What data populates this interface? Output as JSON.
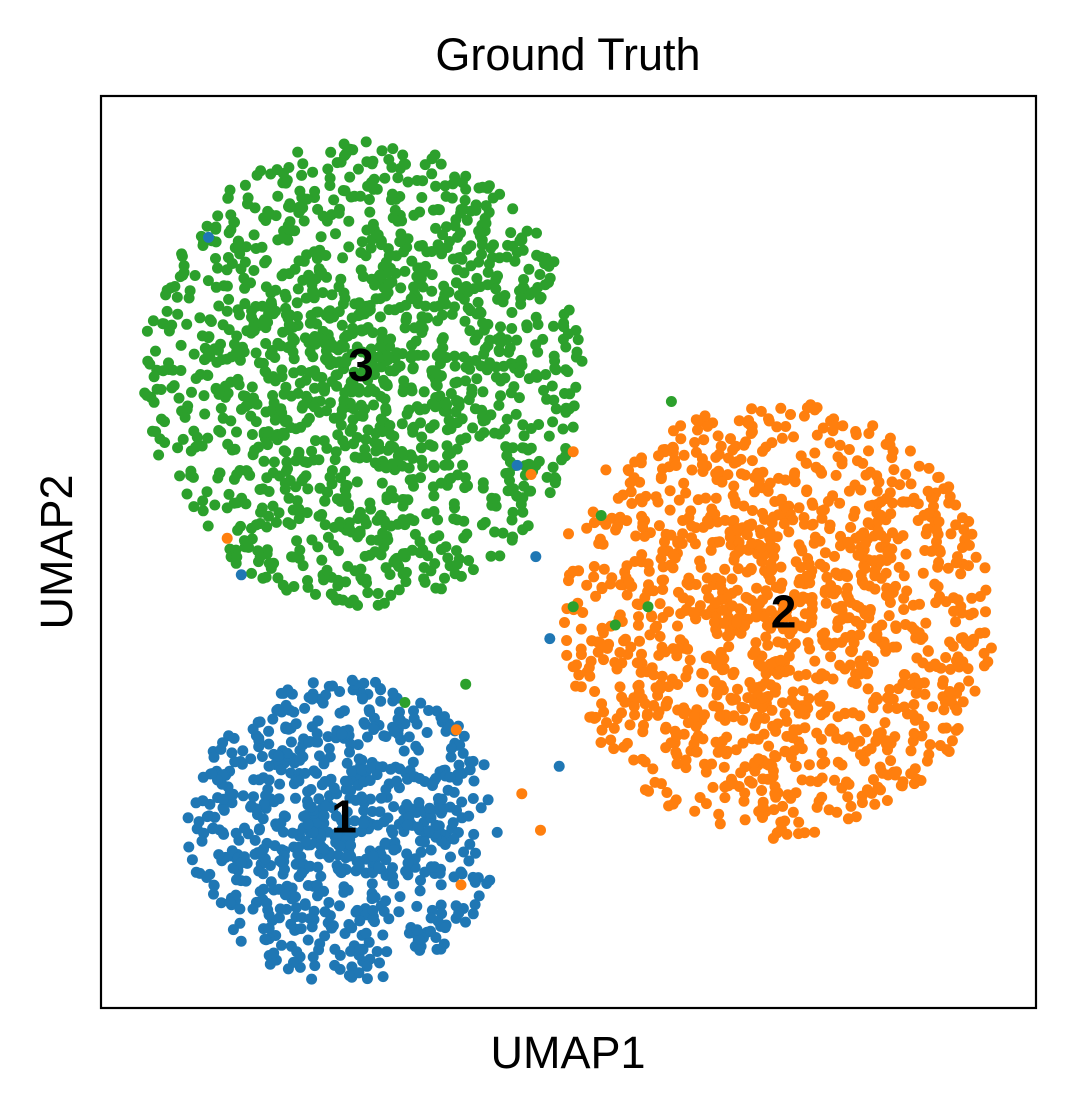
{
  "chart_data": {
    "type": "scatter",
    "title": "Ground Truth",
    "xlabel": "UMAP1",
    "ylabel": "UMAP2",
    "xlim": [
      0,
      10
    ],
    "ylim": [
      0,
      10
    ],
    "grid": false,
    "legend": "on data",
    "series": [
      {
        "name": "1",
        "color": "#1f77b4",
        "label_at": [
          2.6,
          2.1
        ],
        "count": 750,
        "center": [
          2.6,
          1.95
        ],
        "radius": [
          1.68,
          1.67
        ]
      },
      {
        "name": "2",
        "color": "#ff7f0e",
        "label_at": [
          7.3,
          4.35
        ],
        "count": 1300,
        "center": [
          7.25,
          4.25
        ],
        "radius": [
          2.3,
          2.4
        ]
      },
      {
        "name": "3",
        "color": "#2ca02c",
        "label_at": [
          2.78,
          7.05
        ],
        "count": 1400,
        "center": [
          2.8,
          6.95
        ],
        "radius": [
          2.35,
          2.55
        ]
      }
    ],
    "stray_points": [
      {
        "series": "2",
        "x": 5.0,
        "y": 5.2
      },
      {
        "series": "2",
        "x": 5.4,
        "y": 5.9
      },
      {
        "series": "2",
        "x": 5.05,
        "y": 6.1
      },
      {
        "series": "2",
        "x": 4.6,
        "y": 5.85
      },
      {
        "series": "2",
        "x": 3.8,
        "y": 3.05
      },
      {
        "series": "2",
        "x": 4.5,
        "y": 2.35
      },
      {
        "series": "2",
        "x": 4.7,
        "y": 1.95
      },
      {
        "series": "2",
        "x": 3.85,
        "y": 1.35
      },
      {
        "series": "2",
        "x": 1.35,
        "y": 5.15
      },
      {
        "series": "1",
        "x": 4.65,
        "y": 4.95
      },
      {
        "series": "1",
        "x": 4.45,
        "y": 5.95
      },
      {
        "series": "1",
        "x": 4.9,
        "y": 2.65
      },
      {
        "series": "1",
        "x": 1.15,
        "y": 8.45
      },
      {
        "series": "1",
        "x": 1.5,
        "y": 4.75
      },
      {
        "series": "1",
        "x": 4.8,
        "y": 4.05
      },
      {
        "series": "3",
        "x": 5.05,
        "y": 4.4
      },
      {
        "series": "3",
        "x": 5.5,
        "y": 4.2
      },
      {
        "series": "3",
        "x": 5.35,
        "y": 5.4
      },
      {
        "series": "3",
        "x": 3.9,
        "y": 3.55
      },
      {
        "series": "3",
        "x": 3.25,
        "y": 3.35
      },
      {
        "series": "3",
        "x": 5.85,
        "y": 4.4
      },
      {
        "series": "3",
        "x": 6.1,
        "y": 6.65
      }
    ]
  }
}
